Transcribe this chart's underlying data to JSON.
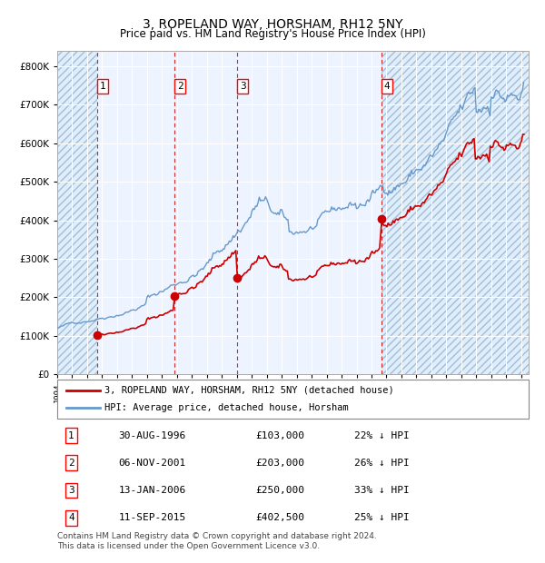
{
  "title": "3, ROPELAND WAY, HORSHAM, RH12 5NY",
  "subtitle": "Price paid vs. HM Land Registry's House Price Index (HPI)",
  "transactions": [
    {
      "num": 1,
      "date_label": "30-AUG-1996",
      "date_year": 1996.66,
      "price": 103000,
      "hpi_pct": "22% ↓ HPI"
    },
    {
      "num": 2,
      "date_label": "06-NOV-2001",
      "date_year": 2001.85,
      "price": 203000,
      "hpi_pct": "26% ↓ HPI"
    },
    {
      "num": 3,
      "date_label": "13-JAN-2006",
      "date_year": 2006.04,
      "price": 250000,
      "hpi_pct": "33% ↓ HPI"
    },
    {
      "num": 4,
      "date_label": "11-SEP-2015",
      "date_year": 2015.69,
      "price": 402500,
      "hpi_pct": "25% ↓ HPI"
    }
  ],
  "legend_line1": "3, ROPELAND WAY, HORSHAM, RH12 5NY (detached house)",
  "legend_line2": "HPI: Average price, detached house, Horsham",
  "footnote1": "Contains HM Land Registry data © Crown copyright and database right 2024.",
  "footnote2": "This data is licensed under the Open Government Licence v3.0.",
  "price_line_color": "#cc0000",
  "hpi_line_color": "#6699cc",
  "dot_color": "#cc0000",
  "vline_color": "#cc0000",
  "plot_bg": "#eef4ff",
  "ylim": [
    0,
    840000
  ],
  "yticks": [
    0,
    100000,
    200000,
    300000,
    400000,
    500000,
    600000,
    700000,
    800000
  ],
  "xlim_start": 1994.0,
  "xlim_end": 2025.5,
  "hpi_segments": [
    [
      1994.0,
      2000.0,
      120000,
      200000,
      0.01
    ],
    [
      2000.0,
      2004.0,
      200000,
      290000,
      0.012
    ],
    [
      2004.0,
      2007.5,
      290000,
      460000,
      0.014
    ],
    [
      2007.5,
      2009.5,
      460000,
      370000,
      0.015
    ],
    [
      2009.5,
      2014.0,
      370000,
      430000,
      0.01
    ],
    [
      2014.0,
      2022.0,
      430000,
      680000,
      0.012
    ],
    [
      2022.0,
      2023.0,
      680000,
      720000,
      0.016
    ],
    [
      2023.0,
      2025.3,
      720000,
      680000,
      0.014
    ]
  ]
}
